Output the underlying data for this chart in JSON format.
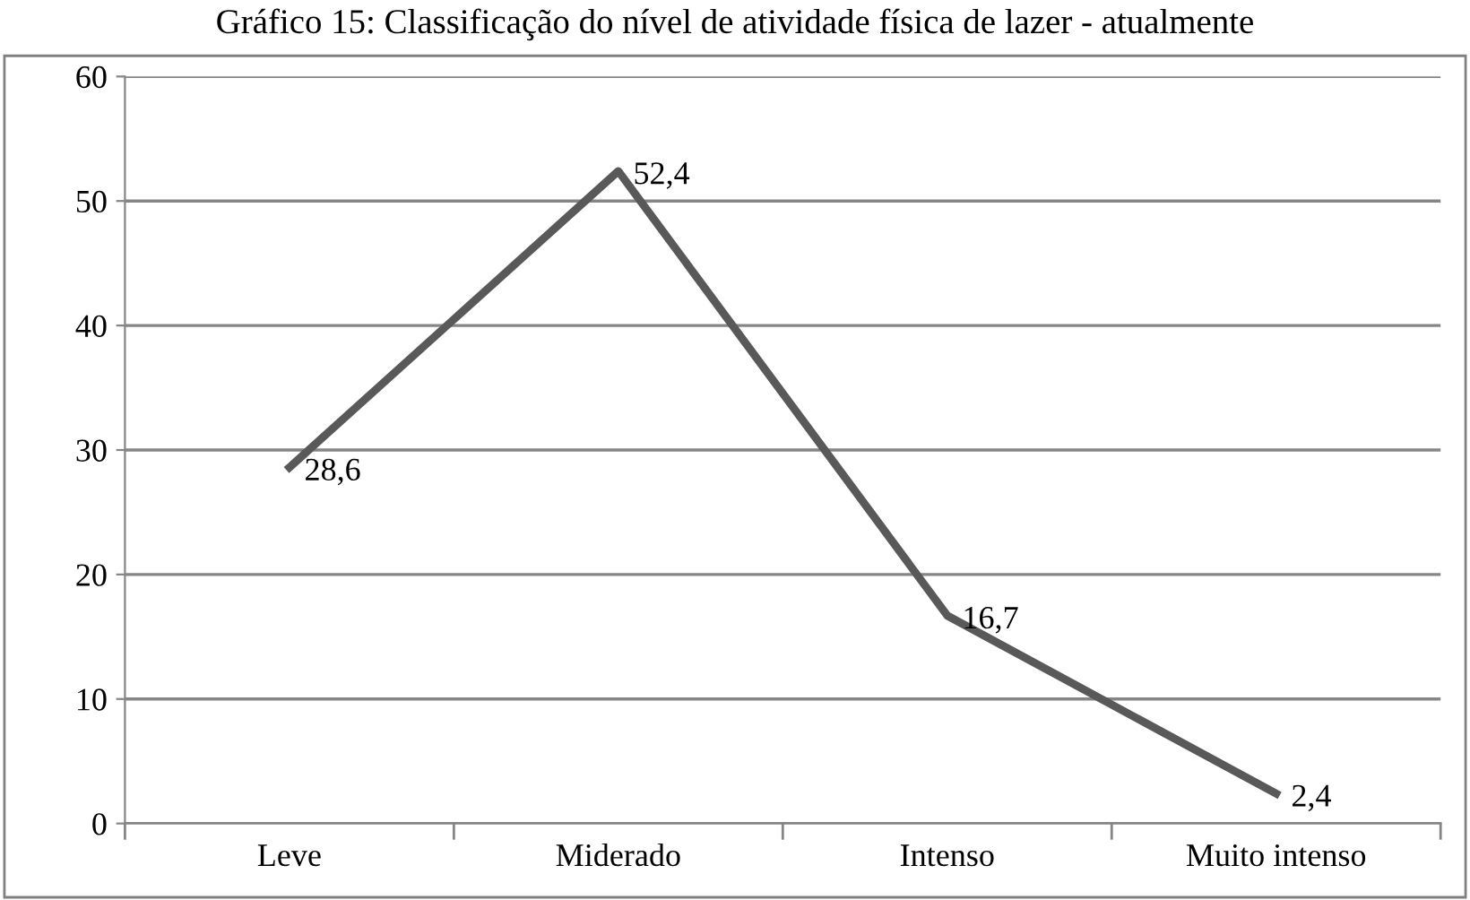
{
  "chart_data": {
    "type": "line",
    "title": "Gráfico 15: Classificação do nível de atividade física de lazer - atualmente",
    "categories": [
      "Leve",
      "Miderado",
      "Intenso",
      "Muito intenso"
    ],
    "series": [
      {
        "color": "#595959",
        "values": [
          28.6,
          52.4,
          16.7,
          2.4
        ]
      }
    ],
    "ylim": [
      0,
      60
    ],
    "yticks": [
      0,
      10,
      20,
      30,
      40,
      50,
      60
    ],
    "grid": "y",
    "marker": "none",
    "line_style": "solid",
    "value_labels": [
      "28,6",
      "52,4",
      "16,7",
      "2,4"
    ],
    "legend": false
  }
}
